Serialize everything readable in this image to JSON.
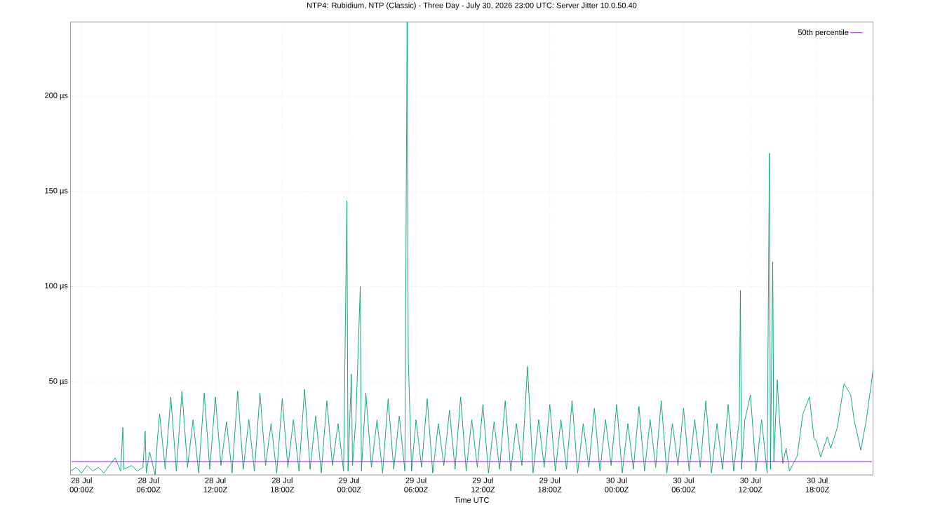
{
  "chart_data": {
    "type": "line",
    "title": "NTP4: Rubidium, NTP (Classic) - Three Day - July 30, 2026 23:00 UTC: Server Jitter 10.0.50.40",
    "xlabel": "Time UTC",
    "xlim": [
      "2026-07-27T23:00",
      "2026-07-30T23:00"
    ],
    "ylim": [
      1,
      239
    ],
    "xticks": [
      {
        "value": "2026-07-28T00:00",
        "label": "28 Jul 00:00Z"
      },
      {
        "value": "2026-07-28T06:00",
        "label": "28 Jul 06:00Z"
      },
      {
        "value": "2026-07-28T12:00",
        "label": "28 Jul 12:00Z"
      },
      {
        "value": "2026-07-28T18:00",
        "label": "28 Jul 18:00Z"
      },
      {
        "value": "2026-07-29T00:00",
        "label": "29 Jul 00:00Z"
      },
      {
        "value": "2026-07-29T06:00",
        "label": "29 Jul 06:00Z"
      },
      {
        "value": "2026-07-29T12:00",
        "label": "29 Jul 12:00Z"
      },
      {
        "value": "2026-07-29T18:00",
        "label": "29 Jul 18:00Z"
      },
      {
        "value": "2026-07-30T00:00",
        "label": "30 Jul 00:00Z"
      },
      {
        "value": "2026-07-30T06:00",
        "label": "30 Jul 06:00Z"
      },
      {
        "value": "2026-07-30T12:00",
        "label": "30 Jul 12:00Z"
      },
      {
        "value": "2026-07-30T18:00",
        "label": "30 Jul 18:00Z"
      }
    ],
    "yticks": [
      {
        "value": 50,
        "label": "50 µs"
      },
      {
        "value": 100,
        "label": "100 µs"
      },
      {
        "value": 150,
        "label": "150 µs"
      },
      {
        "value": 200,
        "label": "200 µs"
      }
    ],
    "grid": true,
    "legend": "top right",
    "series": [
      {
        "name": "50th percentile",
        "color": "#9400d3",
        "x": [
          "2026-07-27T23:06",
          "2026-07-30T22:54"
        ],
        "values": [
          8,
          8
        ]
      },
      {
        "color": "#009e73",
        "x": [
          "2026-07-27T23:00",
          "2026-07-27T23:30",
          "2026-07-28T00:00",
          "2026-07-28T00:30",
          "2026-07-28T01:00",
          "2026-07-28T01:30",
          "2026-07-28T02:00",
          "2026-07-28T02:30",
          "2026-07-28T03:00",
          "2026-07-28T03:30",
          "2026-07-28T03:42",
          "2026-07-28T03:48",
          "2026-07-28T04:30",
          "2026-07-28T05:00",
          "2026-07-28T05:30",
          "2026-07-28T05:42",
          "2026-07-28T05:48",
          "2026-07-28T06:06",
          "2026-07-28T06:36",
          "2026-07-28T06:48",
          "2026-07-28T07:00",
          "2026-07-28T07:30",
          "2026-07-28T08:00",
          "2026-07-28T08:30",
          "2026-07-28T09:00",
          "2026-07-28T09:30",
          "2026-07-28T10:00",
          "2026-07-28T10:30",
          "2026-07-28T11:00",
          "2026-07-28T11:30",
          "2026-07-28T12:00",
          "2026-07-28T12:30",
          "2026-07-28T13:00",
          "2026-07-28T13:30",
          "2026-07-28T14:00",
          "2026-07-28T14:30",
          "2026-07-28T15:00",
          "2026-07-28T15:30",
          "2026-07-28T16:00",
          "2026-07-28T16:30",
          "2026-07-28T17:00",
          "2026-07-28T17:30",
          "2026-07-28T18:00",
          "2026-07-28T18:30",
          "2026-07-28T19:00",
          "2026-07-28T19:30",
          "2026-07-28T20:00",
          "2026-07-28T20:30",
          "2026-07-28T21:00",
          "2026-07-28T21:30",
          "2026-07-28T22:00",
          "2026-07-28T22:30",
          "2026-07-28T23:00",
          "2026-07-28T23:30",
          "2026-07-28T23:48",
          "2026-07-28T23:54",
          "2026-07-29T00:12",
          "2026-07-29T00:18",
          "2026-07-29T00:36",
          "2026-07-29T01:00",
          "2026-07-29T01:06",
          "2026-07-29T01:30",
          "2026-07-29T02:00",
          "2026-07-29T02:30",
          "2026-07-29T03:00",
          "2026-07-29T03:30",
          "2026-07-29T04:00",
          "2026-07-29T04:30",
          "2026-07-29T05:00",
          "2026-07-29T05:12",
          "2026-07-29T05:18",
          "2026-07-29T05:36",
          "2026-07-29T06:00",
          "2026-07-29T06:30",
          "2026-07-29T07:00",
          "2026-07-29T07:30",
          "2026-07-29T08:00",
          "2026-07-29T08:30",
          "2026-07-29T09:00",
          "2026-07-29T09:30",
          "2026-07-29T10:00",
          "2026-07-29T10:30",
          "2026-07-29T11:00",
          "2026-07-29T11:30",
          "2026-07-29T12:00",
          "2026-07-29T12:30",
          "2026-07-29T13:00",
          "2026-07-29T13:30",
          "2026-07-29T14:00",
          "2026-07-29T14:30",
          "2026-07-29T15:00",
          "2026-07-29T15:30",
          "2026-07-29T16:00",
          "2026-07-29T16:30",
          "2026-07-29T17:00",
          "2026-07-29T17:30",
          "2026-07-29T18:00",
          "2026-07-29T18:30",
          "2026-07-29T19:00",
          "2026-07-29T19:30",
          "2026-07-29T20:00",
          "2026-07-29T20:30",
          "2026-07-29T21:00",
          "2026-07-29T21:30",
          "2026-07-29T22:00",
          "2026-07-29T22:30",
          "2026-07-29T23:00",
          "2026-07-29T23:30",
          "2026-07-30T00:00",
          "2026-07-30T00:30",
          "2026-07-30T01:00",
          "2026-07-30T01:30",
          "2026-07-30T02:00",
          "2026-07-30T02:30",
          "2026-07-30T03:00",
          "2026-07-30T03:30",
          "2026-07-30T04:00",
          "2026-07-30T04:30",
          "2026-07-30T05:00",
          "2026-07-30T05:30",
          "2026-07-30T06:00",
          "2026-07-30T06:30",
          "2026-07-30T07:00",
          "2026-07-30T07:30",
          "2026-07-30T08:00",
          "2026-07-30T08:30",
          "2026-07-30T09:00",
          "2026-07-30T09:30",
          "2026-07-30T10:00",
          "2026-07-30T10:30",
          "2026-07-30T11:00",
          "2026-07-30T11:06",
          "2026-07-30T11:12",
          "2026-07-30T11:30",
          "2026-07-30T12:00",
          "2026-07-30T12:30",
          "2026-07-30T13:00",
          "2026-07-30T13:30",
          "2026-07-30T13:42",
          "2026-07-30T13:48",
          "2026-07-30T14:00",
          "2026-07-30T14:06",
          "2026-07-30T14:24",
          "2026-07-30T14:36",
          "2026-07-30T14:54",
          "2026-07-30T15:12",
          "2026-07-30T15:30",
          "2026-07-30T16:12",
          "2026-07-30T16:42",
          "2026-07-30T17:18",
          "2026-07-30T17:42",
          "2026-07-30T17:54",
          "2026-07-30T18:18",
          "2026-07-30T18:54",
          "2026-07-30T19:12",
          "2026-07-30T19:48",
          "2026-07-30T20:24",
          "2026-07-30T21:00",
          "2026-07-30T21:18",
          "2026-07-30T21:54",
          "2026-07-30T22:24",
          "2026-07-30T23:00"
        ],
        "values": [
          3,
          5,
          2,
          6,
          3,
          5,
          2,
          6,
          10,
          3,
          26,
          4,
          6,
          3,
          5,
          24,
          2,
          13,
          1,
          20,
          33,
          4,
          42,
          3,
          45,
          5,
          30,
          2,
          44,
          4,
          42,
          6,
          29,
          2,
          45,
          4,
          30,
          3,
          44,
          6,
          28,
          2,
          41,
          5,
          30,
          3,
          46,
          4,
          32,
          2,
          40,
          6,
          28,
          3,
          145,
          3,
          54,
          6,
          30,
          100,
          3,
          44,
          5,
          30,
          2,
          41,
          4,
          32,
          3,
          239,
          63,
          3,
          30,
          5,
          41,
          2,
          28,
          6,
          35,
          4,
          42,
          3,
          30,
          5,
          38,
          2,
          29,
          4,
          40,
          3,
          28,
          6,
          58,
          2,
          30,
          5,
          38,
          3,
          30,
          4,
          40,
          2,
          28,
          5,
          36,
          3,
          30,
          6,
          38,
          2,
          28,
          4,
          37,
          3,
          30,
          5,
          40,
          2,
          28,
          6,
          36,
          3,
          30,
          5,
          40,
          2,
          28,
          4,
          38,
          3,
          30,
          98,
          4,
          30,
          43,
          3,
          30,
          2,
          170,
          4,
          113,
          8,
          51,
          31,
          7,
          15,
          3,
          11,
          33,
          42,
          20,
          19,
          10.5,
          21,
          15,
          26,
          49,
          43,
          30,
          14,
          30,
          56
        ]
      }
    ]
  }
}
